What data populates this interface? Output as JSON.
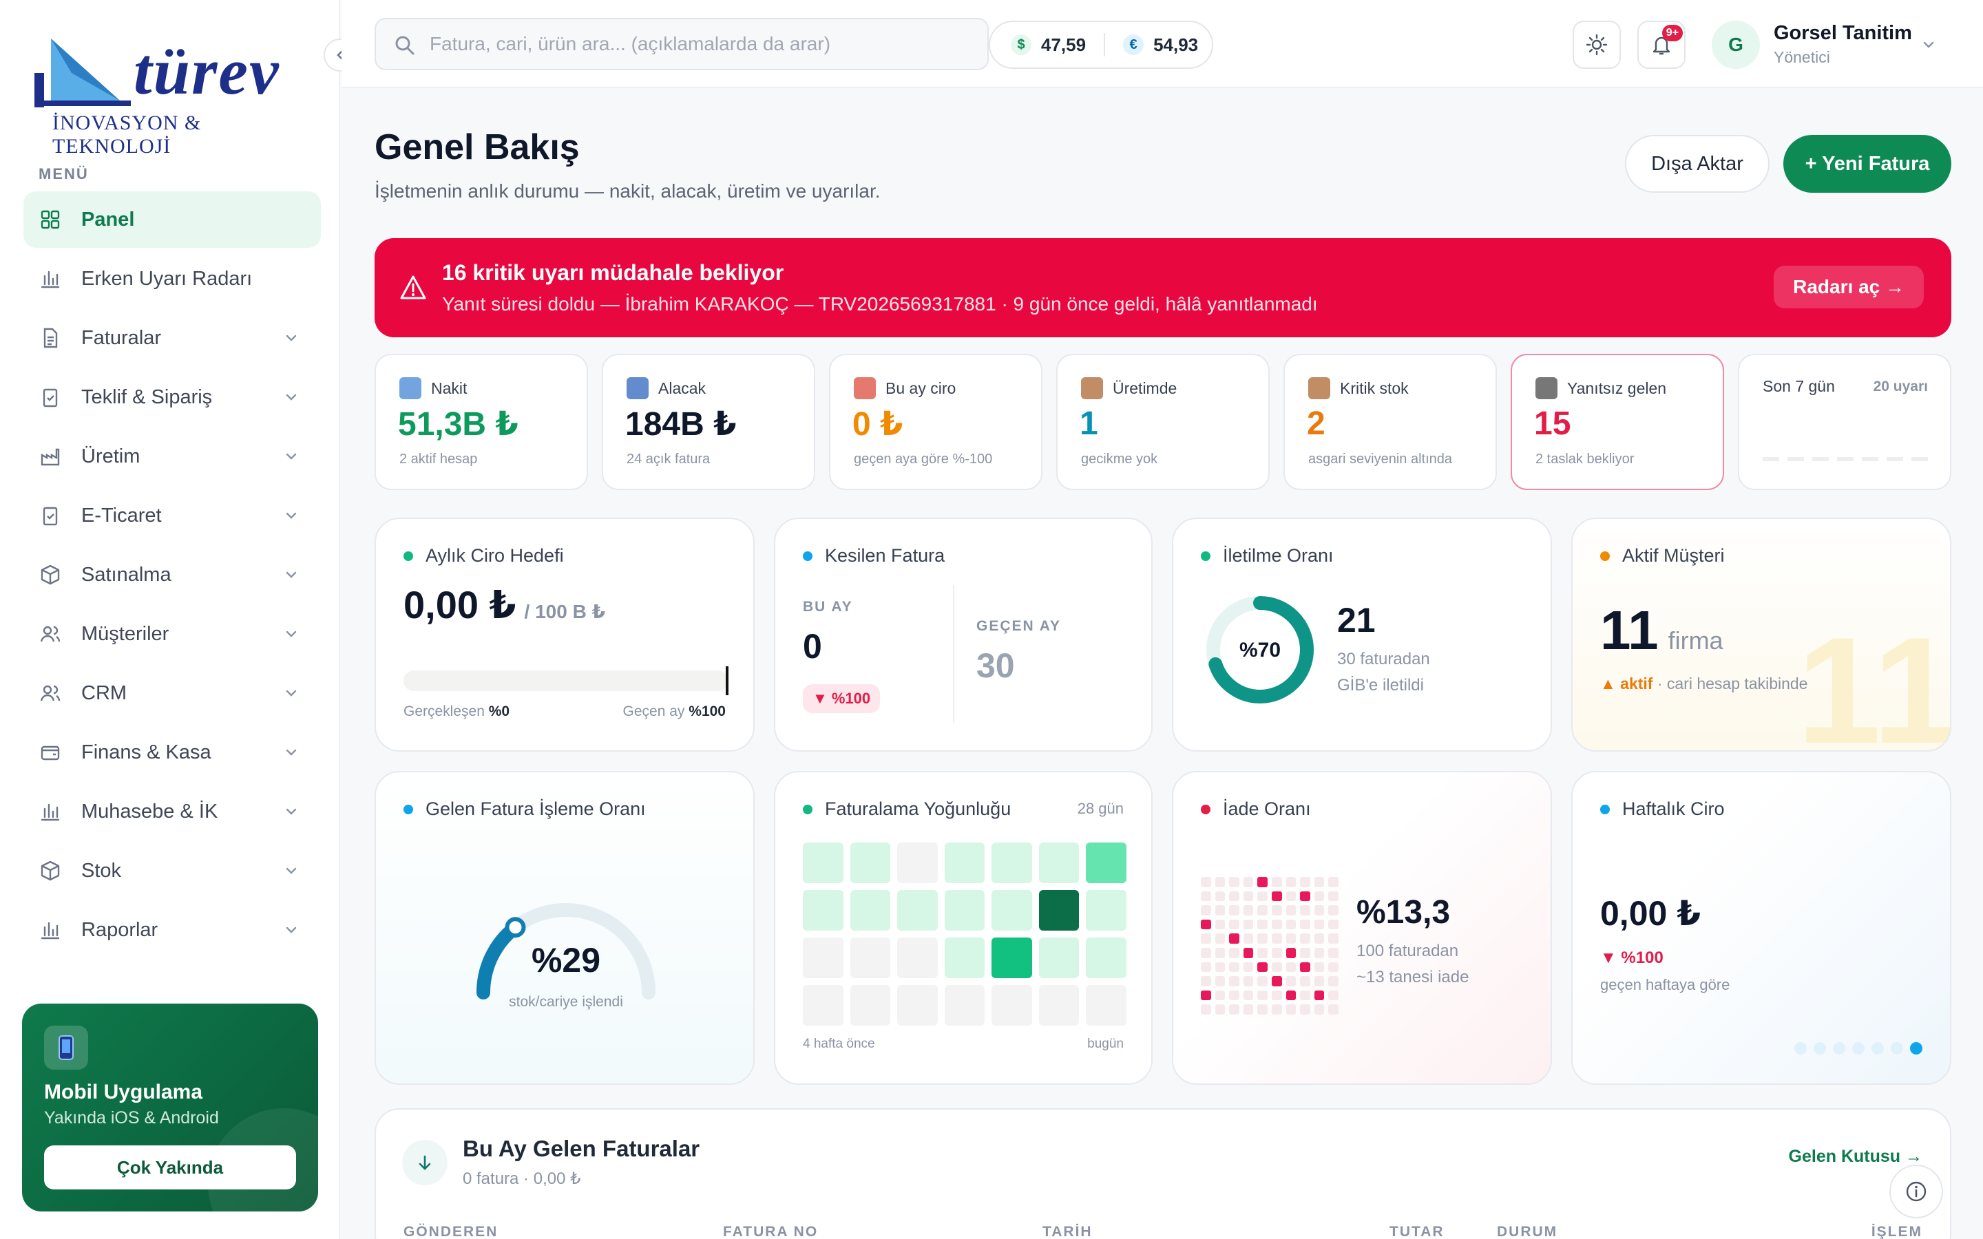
{
  "brand": {
    "word": "türev",
    "tagline": "İNOVASYON & TEKNOLOJİ"
  },
  "sidebar": {
    "menu_title": "MENÜ",
    "items": [
      {
        "label": "Panel",
        "icon": "grid-icon"
      },
      {
        "label": "Erken Uyarı Radarı",
        "icon": "bar-chart-icon"
      },
      {
        "label": "Faturalar",
        "icon": "document-icon"
      },
      {
        "label": "Teklif & Sipariş",
        "icon": "clipboard-check-icon"
      },
      {
        "label": "Üretim",
        "icon": "factory-icon"
      },
      {
        "label": "E-Ticaret",
        "icon": "clipboard-check-icon"
      },
      {
        "label": "Satınalma",
        "icon": "box-icon"
      },
      {
        "label": "Müşteriler",
        "icon": "users-icon"
      },
      {
        "label": "CRM",
        "icon": "users-icon"
      },
      {
        "label": "Finans & Kasa",
        "icon": "wallet-icon"
      },
      {
        "label": "Muhasebe & İK",
        "icon": "bar-chart-icon"
      },
      {
        "label": "Stok",
        "icon": "box-icon"
      },
      {
        "label": "Raporlar",
        "icon": "bar-chart-icon"
      }
    ],
    "promo": {
      "title": "Mobil Uygulama",
      "subtitle": "Yakında iOS & Android",
      "button": "Çok Yakında"
    }
  },
  "topbar": {
    "search_placeholder": "Fatura, cari, ürün ara... (açıklamalarda da arar)",
    "usd_symbol": "$",
    "usd": "47,59",
    "eur_symbol": "€",
    "eur": "54,93",
    "notif_badge": "9+",
    "avatar_initial": "G",
    "user_name": "Gorsel Tanitim",
    "user_role": "Yönetici"
  },
  "header": {
    "title": "Genel Bakış",
    "subtitle": "İşletmenin anlık durumu — nakit, alacak, üretim ve uyarılar.",
    "export_label": "Dışa Aktar",
    "new_invoice_label": "+ Yeni Fatura"
  },
  "alert": {
    "title": "16 kritik uyarı müdahale bekliyor",
    "text": "Yanıt süresi doldu — İbrahim KARAKOÇ — TRV2026569317881 · 9 gün önce geldi, hâlâ yanıtlanmadı",
    "action": "Radarı aç →"
  },
  "kpis": [
    {
      "label": "Nakit",
      "value": "51,3B ₺",
      "sub": "2 aktif hesap",
      "color": "#0e9a5c"
    },
    {
      "label": "Alacak",
      "value": "184B ₺",
      "sub": "24 açık fatura",
      "color": "#0f172a"
    },
    {
      "label": "Bu ay ciro",
      "value": "0 ₺",
      "sub": "geçen aya göre %-100",
      "color": "#f08a00"
    },
    {
      "label": "Üretimde",
      "value": "1",
      "sub": "gecikme yok",
      "color": "#0891b2"
    },
    {
      "label": "Kritik stok",
      "value": "2",
      "sub": "asgari seviyenin altında",
      "color": "#ea7a0c"
    },
    {
      "label": "Yanıtsız gelen",
      "value": "15",
      "sub": "2 taslak bekliyor",
      "color": "#e11d48"
    },
    {
      "label": "Son 7 gün",
      "value": "",
      "sub": "",
      "right": "20 uyarı",
      "color": "#0f172a"
    }
  ],
  "cards": {
    "ciro": {
      "title": "Aylık Ciro Hedefi",
      "value": "0,00 ₺",
      "target": "/ 100 B ₺",
      "progress": 0,
      "left_label": "Gerçekleşen",
      "left_val": "%0",
      "right_label": "Geçen ay",
      "right_val": "%100"
    },
    "kesilen": {
      "title": "Kesilen Fatura",
      "this_label": "BU AY",
      "this_val": "0",
      "change": "▼ %100",
      "prev_label": "GEÇEN AY",
      "prev_val": "30"
    },
    "iletim": {
      "title": "İletilme Oranı",
      "pct_label": "%70",
      "pct": 70,
      "count": "21",
      "line1": "30 faturadan",
      "line2": "GİB'e iletildi"
    },
    "musteri": {
      "title": "Aktif Müşteri",
      "value": "11",
      "unit": "firma",
      "tag": "▲ aktif",
      "note": "· cari hesap takibinde",
      "bg_num": "11"
    },
    "isleme": {
      "title": "Gelen Fatura İşleme Oranı",
      "pct_label": "%29",
      "pct": 29,
      "sub": "stok/cariye işlendi"
    },
    "yogunluk": {
      "title": "Faturalama Yoğunluğu",
      "range": "28 gün",
      "left": "4 hafta önce",
      "right": "bugün",
      "levels": [
        1,
        1,
        0,
        1,
        1,
        1,
        2,
        1,
        1,
        1,
        1,
        1,
        4,
        1,
        0,
        0,
        0,
        1,
        3,
        1,
        1,
        0,
        0,
        0,
        0,
        0,
        0,
        0
      ]
    },
    "iade": {
      "title": "İade Oranı",
      "value": "%13,3",
      "line1": "100 faturadan",
      "line2": "~13 tanesi iade",
      "rate": 13.3
    },
    "haftalik": {
      "title": "Haftalık Ciro",
      "value": "0,00 ₺",
      "change": "▼ %100",
      "note": "geçen haftaya göre"
    }
  },
  "invoices": {
    "title": "Bu Ay Gelen Faturalar",
    "subtitle": "0 fatura · 0,00 ₺",
    "link": "Gelen Kutusu →",
    "columns": [
      "GÖNDEREN",
      "FATURA NO",
      "TARİH",
      "TUTAR",
      "DURUM",
      "İŞLEM"
    ]
  }
}
